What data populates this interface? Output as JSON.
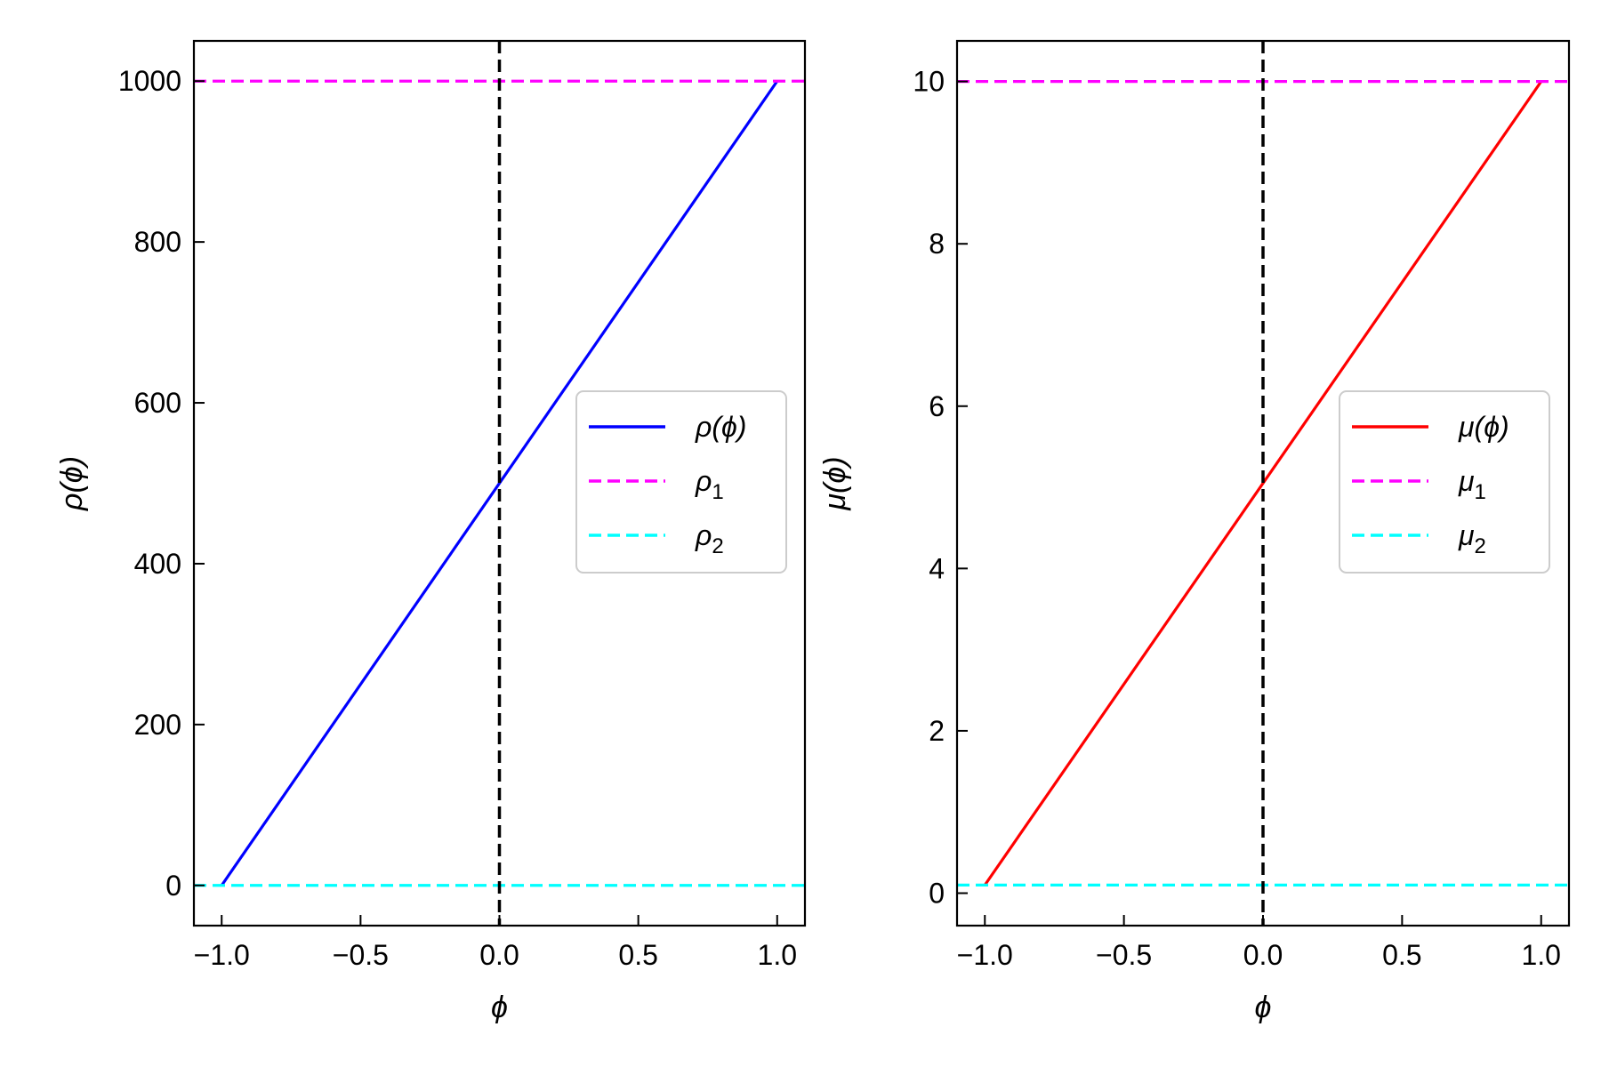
{
  "chart_data": [
    {
      "type": "line",
      "title": "",
      "xlabel": "ϕ",
      "ylabel": "ρ(ϕ)",
      "xlim": [
        -1.1,
        1.1
      ],
      "ylim": [
        -50,
        1050
      ],
      "xticks": [
        -1.0,
        -0.5,
        0.0,
        0.5,
        1.0
      ],
      "xtick_labels": [
        "−1.0",
        "−0.5",
        "0.0",
        "0.5",
        "1.0"
      ],
      "yticks": [
        0,
        200,
        400,
        600,
        800,
        1000
      ],
      "ytick_labels": [
        "0",
        "200",
        "400",
        "600",
        "800",
        "1000"
      ],
      "grid": false,
      "legend_position": "center-right",
      "series": [
        {
          "name": "ρ(ϕ)",
          "legend_main": "ρ(ϕ)",
          "legend_sub": "",
          "x": [
            -1.0,
            1.0
          ],
          "y": [
            0,
            1000
          ],
          "color": "#0000ff",
          "style": "solid",
          "kind": "line"
        },
        {
          "name": "ρ1",
          "legend_main": "ρ",
          "legend_sub": "1",
          "y_const": 1000,
          "color": "#ff00ff",
          "style": "dashed",
          "kind": "hline"
        },
        {
          "name": "ρ2",
          "legend_main": "ρ",
          "legend_sub": "2",
          "y_const": 0,
          "color": "#00ffff",
          "style": "dashed",
          "kind": "hline"
        }
      ],
      "vline": {
        "x": 0.0,
        "color": "#000000",
        "style": "dashed"
      }
    },
    {
      "type": "line",
      "title": "",
      "xlabel": "ϕ",
      "ylabel": "μ(ϕ)",
      "xlim": [
        -1.1,
        1.1
      ],
      "ylim": [
        -0.4,
        10.5
      ],
      "xticks": [
        -1.0,
        -0.5,
        0.0,
        0.5,
        1.0
      ],
      "xtick_labels": [
        "−1.0",
        "−0.5",
        "0.0",
        "0.5",
        "1.0"
      ],
      "yticks": [
        0,
        2,
        4,
        6,
        8,
        10
      ],
      "ytick_labels": [
        "0",
        "2",
        "4",
        "6",
        "8",
        "10"
      ],
      "grid": false,
      "legend_position": "center-right",
      "series": [
        {
          "name": "μ(ϕ)",
          "legend_main": "μ(ϕ)",
          "legend_sub": "",
          "x": [
            -1.0,
            1.0
          ],
          "y": [
            0.1,
            10
          ],
          "color": "#ff0000",
          "style": "solid",
          "kind": "line"
        },
        {
          "name": "μ1",
          "legend_main": "μ",
          "legend_sub": "1",
          "y_const": 10,
          "color": "#ff00ff",
          "style": "dashed",
          "kind": "hline"
        },
        {
          "name": "μ2",
          "legend_main": "μ",
          "legend_sub": "2",
          "y_const": 0.1,
          "color": "#00ffff",
          "style": "dashed",
          "kind": "hline"
        }
      ],
      "vline": {
        "x": 0.0,
        "color": "#000000",
        "style": "dashed"
      }
    }
  ]
}
